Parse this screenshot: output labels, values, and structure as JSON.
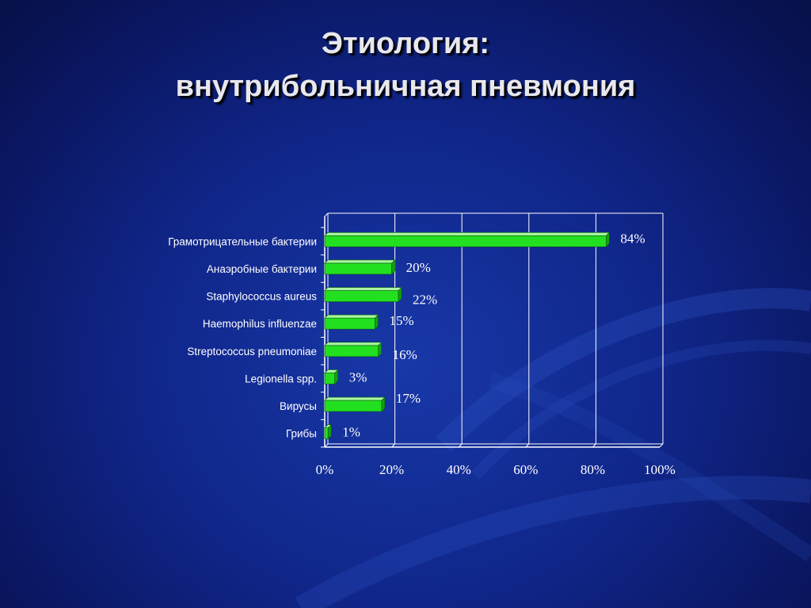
{
  "slide": {
    "title_line1": "Этиология:",
    "title_line2": "внутрибольничная пневмония"
  },
  "colors": {
    "bar": "#22e020",
    "bar_top": "#a8f5a0",
    "bar_side": "#12a012",
    "grid": "#ffffff",
    "text": "#ffffff"
  },
  "chart_data": {
    "type": "bar",
    "orientation": "horizontal",
    "categories": [
      "Грамотрицательные бактерии",
      "Анаэробные бактерии",
      "Staphylococcus aureus",
      "Haemophilus influenzae",
      "Streptococcus pneumoniae",
      "Legionella spp.",
      "Вирусы",
      "Грибы"
    ],
    "values": [
      84,
      20,
      22,
      15,
      16,
      3,
      17,
      1
    ],
    "value_labels": [
      "84%",
      "20%",
      "22%",
      "15%",
      "16%",
      "3%",
      "17%",
      "1%"
    ],
    "xlim": [
      0,
      100
    ],
    "x_ticks": [
      "0%",
      "20%",
      "40%",
      "60%",
      "80%",
      "100%"
    ],
    "grid": true,
    "legend": "none"
  }
}
